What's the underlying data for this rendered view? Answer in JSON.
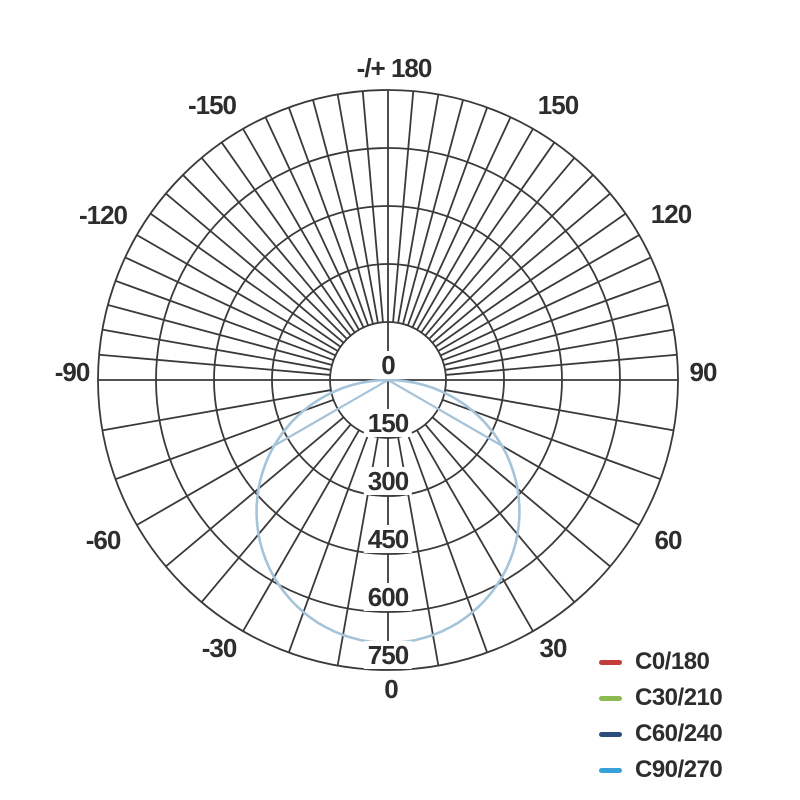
{
  "colors": {
    "background": "#ffffff",
    "grid": "#3a3a3a",
    "text": "#2d2d2d",
    "curve": "#a5c4da"
  },
  "legend": {
    "items": [
      {
        "label": "C0/180",
        "color": "#c43b3b"
      },
      {
        "label": "C30/210",
        "color": "#8cbb51"
      },
      {
        "label": "C60/240",
        "color": "#2e4d7e"
      },
      {
        "label": "C90/270",
        "color": "#39a1da"
      }
    ]
  },
  "polar_axis": {
    "top_label": "-/+ 180",
    "angle_labels": [
      "-/+ 180",
      "-150",
      "150",
      "-120",
      "120",
      "-90",
      "90",
      "-60",
      "60",
      "-30",
      "30",
      "0"
    ],
    "angle_unit": "degrees",
    "radial_tick_values": [
      0,
      150,
      300,
      450,
      600,
      750
    ],
    "ring_values": [
      150,
      300,
      450,
      600,
      750
    ],
    "grid_step_upper_deg": 5,
    "grid_step_lower_deg": 10
  },
  "chart_data": {
    "type": "line",
    "subtype": "polar-photometric-intensity-distribution",
    "max_intensity_cd": 680,
    "radial_axis": {
      "min": 0,
      "max": 750,
      "step": 150,
      "unit": "cd"
    },
    "angular_axis": {
      "min": -180,
      "max": 180,
      "label_step_deg": 30
    },
    "legend_position": "bottom-right",
    "series": [
      {
        "name": "C0/180",
        "gamma_deg": [
          0,
          15,
          30,
          45,
          60,
          75,
          90
        ],
        "intensity_cd": [
          680,
          657,
          589,
          481,
          340,
          176,
          0
        ]
      },
      {
        "name": "C30/210",
        "gamma_deg": [
          0,
          15,
          30,
          45,
          60,
          75,
          90
        ],
        "intensity_cd": [
          680,
          657,
          589,
          481,
          340,
          176,
          0
        ]
      },
      {
        "name": "C60/240",
        "gamma_deg": [
          0,
          15,
          30,
          45,
          60,
          75,
          90
        ],
        "intensity_cd": [
          680,
          657,
          589,
          481,
          340,
          176,
          0
        ]
      },
      {
        "name": "C90/270",
        "gamma_deg": [
          0,
          15,
          30,
          45,
          60,
          75,
          90
        ],
        "intensity_cd": [
          680,
          657,
          589,
          481,
          340,
          176,
          0
        ]
      }
    ],
    "note": "All four C-plane curves coincide (near-Lambertian, ~680 cd peak at gamma 0); light-blue C90/270 curve drawn on top, pointing downward"
  }
}
